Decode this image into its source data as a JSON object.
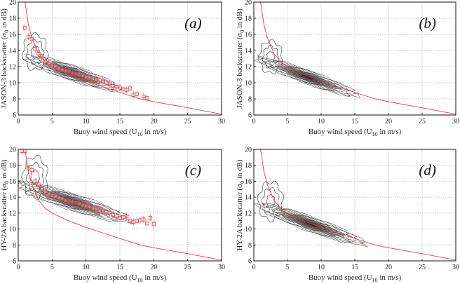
{
  "chart_data": [
    {
      "id": "a",
      "type": "contour",
      "panel_label": "(a)",
      "xlabel": {
        "pre": "Buoy wind speed (U",
        "sub": "10",
        "post": " in m/s)"
      },
      "ylabel": {
        "pre": "JASON-3 backscatter (σ",
        "sub": "0",
        "post": " in dB)"
      },
      "xlim": [
        0,
        30
      ],
      "ylim": [
        6,
        20
      ],
      "xticks": [
        0,
        5,
        10,
        15,
        20,
        25,
        30
      ],
      "yticks": [
        6,
        8,
        10,
        12,
        14,
        16,
        18,
        20
      ],
      "grid": true,
      "density_core": {
        "x": 8,
        "y": 11.2,
        "x_spread": 7,
        "slope": -0.28,
        "y_spread": 1.0,
        "levels": 12
      },
      "low_wind_spread": {
        "x": 2.5,
        "y": 13.8,
        "x_spread": 1.8,
        "y_spread": 2.2
      },
      "binned_means": [
        [
          1,
          16.8
        ],
        [
          1.5,
          15.7
        ],
        [
          2,
          15.4
        ],
        [
          2.5,
          14.2
        ],
        [
          3,
          13.6
        ],
        [
          3.5,
          13.3
        ],
        [
          4,
          12.6
        ],
        [
          4.5,
          12.4
        ],
        [
          5,
          12.1
        ],
        [
          5.5,
          12
        ],
        [
          6,
          11.8
        ],
        [
          6.5,
          11.6
        ],
        [
          7,
          11.5
        ],
        [
          7.5,
          11.4
        ],
        [
          8,
          11.2
        ],
        [
          8.5,
          11.1
        ],
        [
          9,
          11
        ],
        [
          9.5,
          10.9
        ],
        [
          10,
          10.7
        ],
        [
          10.5,
          10.6
        ],
        [
          11,
          10.5
        ],
        [
          11.5,
          10.4
        ],
        [
          12,
          10.3
        ],
        [
          12.5,
          10.1
        ],
        [
          13,
          10
        ],
        [
          13.5,
          9.9
        ],
        [
          14,
          9.6
        ],
        [
          14.5,
          9.5
        ],
        [
          15,
          9.4
        ],
        [
          15.5,
          9.2
        ],
        [
          16,
          9.1
        ],
        [
          16.5,
          9.3
        ],
        [
          17,
          8.5
        ],
        [
          17.5,
          8.6
        ],
        [
          18.5,
          8.3
        ],
        [
          19,
          8.1
        ]
      ],
      "model_curve": true
    },
    {
      "id": "b",
      "type": "contour",
      "panel_label": "(b)",
      "xlabel": {
        "pre": "Buoy wind speed (U",
        "sub": "10",
        "post": " in m/s)"
      },
      "ylabel": {
        "pre": "JASON-3 backscatter (σ",
        "sub": "0",
        "post": " in dB)"
      },
      "xlim": [
        0,
        30
      ],
      "ylim": [
        6,
        20
      ],
      "xticks": [
        0,
        5,
        10,
        15,
        20,
        25,
        30
      ],
      "yticks": [
        6,
        8,
        10,
        12,
        14,
        16,
        18,
        20
      ],
      "grid": true,
      "density_core": {
        "x": 8,
        "y": 10.7,
        "x_spread": 7.5,
        "slope": -0.3,
        "y_spread": 0.9,
        "levels": 12
      },
      "low_wind_spread": {
        "x": 2.5,
        "y": 13.2,
        "x_spread": 1.7,
        "y_spread": 2.0
      },
      "binned_means": [],
      "model_curve": true
    },
    {
      "id": "c",
      "type": "contour",
      "panel_label": "(c)",
      "xlabel": {
        "pre": "Buoy wind speed (U",
        "sub": "10",
        "post": " in m/s)"
      },
      "ylabel": {
        "pre": "HY-2A backscatter (σ",
        "sub": "0",
        "post": " in dB)"
      },
      "xlim": [
        0,
        30
      ],
      "ylim": [
        6,
        20
      ],
      "xticks": [
        0,
        5,
        10,
        15,
        20,
        25,
        30
      ],
      "yticks": [
        6,
        8,
        10,
        12,
        14,
        16,
        18,
        20
      ],
      "grid": true,
      "density_core": {
        "x": 8,
        "y": 13.4,
        "x_spread": 8.5,
        "slope": -0.27,
        "y_spread": 1.1,
        "levels": 12
      },
      "low_wind_spread": {
        "x": 2.5,
        "y": 16.5,
        "x_spread": 1.8,
        "y_spread": 2.6
      },
      "binned_means": [
        [
          0.5,
          19.8
        ],
        [
          1,
          19.8
        ],
        [
          1.5,
          17.6
        ],
        [
          2,
          17.4
        ],
        [
          2.5,
          16
        ],
        [
          3,
          15.6
        ],
        [
          3.5,
          15
        ],
        [
          4,
          14.7
        ],
        [
          4.5,
          14.4
        ],
        [
          5,
          14.2
        ],
        [
          5.5,
          14.1
        ],
        [
          6,
          13.9
        ],
        [
          6.5,
          13.8
        ],
        [
          7,
          13.6
        ],
        [
          7.5,
          13.5
        ],
        [
          8,
          13.4
        ],
        [
          8.5,
          13.3
        ],
        [
          9,
          13.2
        ],
        [
          9.5,
          13
        ],
        [
          10,
          12.9
        ],
        [
          10.5,
          12.8
        ],
        [
          11,
          12.6
        ],
        [
          11.5,
          12.5
        ],
        [
          12,
          12.3
        ],
        [
          12.5,
          12.3
        ],
        [
          13,
          12.1
        ],
        [
          13.5,
          12
        ],
        [
          14,
          11.8
        ],
        [
          14.5,
          11.6
        ],
        [
          15,
          11.4
        ],
        [
          15.5,
          11.5
        ],
        [
          16,
          11.6
        ],
        [
          16.5,
          11
        ],
        [
          17,
          10.9
        ],
        [
          17.5,
          11
        ],
        [
          18,
          11.1
        ],
        [
          18.5,
          11.2
        ],
        [
          19,
          10.7
        ],
        [
          19.5,
          11.4
        ],
        [
          20,
          10.6
        ]
      ],
      "model_curve": true
    },
    {
      "id": "d",
      "type": "contour",
      "panel_label": "(d)",
      "xlabel": {
        "pre": "Buoy wind speed (U",
        "sub": "10",
        "post": " in m/s)"
      },
      "ylabel": {
        "pre": "HY-2A backscatter (σ",
        "sub": "0",
        "post": " in dB)"
      },
      "xlim": [
        0,
        30
      ],
      "ylim": [
        6,
        20
      ],
      "xticks": [
        0,
        5,
        10,
        15,
        20,
        25,
        30
      ],
      "yticks": [
        6,
        8,
        10,
        12,
        14,
        16,
        18,
        20
      ],
      "grid": true,
      "density_core": {
        "x": 8.5,
        "y": 10.6,
        "x_spread": 8,
        "slope": -0.3,
        "y_spread": 1.0,
        "levels": 12
      },
      "low_wind_spread": {
        "x": 2.5,
        "y": 13.5,
        "x_spread": 1.8,
        "y_spread": 2.4
      },
      "binned_means": [],
      "model_curve": true
    }
  ],
  "model_curve_points": [
    [
      1,
      20
    ],
    [
      1.5,
      17.2
    ],
    [
      2,
      15.6
    ],
    [
      3,
      13.6
    ],
    [
      4,
      12.6
    ],
    [
      5,
      12
    ],
    [
      7.5,
      11
    ],
    [
      10,
      10.2
    ],
    [
      12.5,
      9.5
    ],
    [
      15,
      8.8
    ],
    [
      18,
      8
    ],
    [
      20,
      7.65
    ],
    [
      25,
      6.9
    ],
    [
      30,
      6.1
    ]
  ],
  "colors": {
    "model": "#e8393f",
    "binned": "#e0454a",
    "contour": "#333333",
    "grid": "#b0b0b0",
    "core": "#6b0a10"
  }
}
